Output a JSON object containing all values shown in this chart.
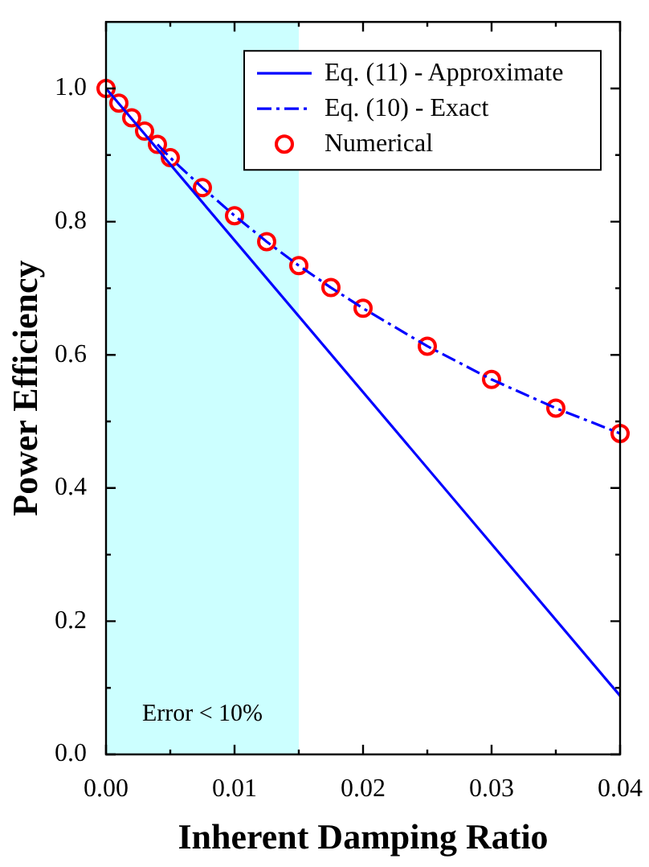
{
  "chart_data": {
    "type": "line",
    "xlabel": "Inherent Damping Ratio",
    "ylabel": "Power Efficiency",
    "xlim": [
      0,
      0.04
    ],
    "ylim": [
      0,
      1.1
    ],
    "xticks": [
      {
        "value": 0,
        "label": "0.00"
      },
      {
        "value": 0.005,
        "label": null
      },
      0.01,
      {
        "value": 0.015,
        "label": null
      },
      0.02,
      {
        "value": 0.025,
        "label": null
      },
      0.03,
      {
        "value": 0.035,
        "label": null
      },
      0.04
    ],
    "yticks": [
      {
        "value": 0,
        "label": "0.0"
      },
      {
        "value": 0.1,
        "label": null
      },
      0.2,
      {
        "value": 0.3,
        "label": null
      },
      0.4,
      {
        "value": 0.5,
        "label": null
      },
      0.6,
      {
        "value": 0.7,
        "label": null
      },
      0.8,
      {
        "value": 0.9,
        "label": null
      },
      {
        "value": 1,
        "label": "1.0"
      }
    ],
    "legend": "top right",
    "bands": [
      {
        "axis": "x",
        "from": 0,
        "to": 0.015,
        "label": "Error < 10%",
        "color": "#ccffff"
      }
    ],
    "series": [
      {
        "name": "Eq. (11) - Approximate",
        "color": "#0000ff",
        "line_style": "solid",
        "marker": "none",
        "x": [
          0,
          0.04
        ],
        "values": [
          1.0,
          0.088
        ]
      },
      {
        "name": "Eq. (10) - Exact",
        "color": "#0000ff",
        "line_style": "dashed",
        "marker": "none",
        "x": [
          0.004,
          0.005,
          0.0075,
          0.01,
          0.0125,
          0.015,
          0.0175,
          0.02,
          0.025,
          0.03,
          0.035,
          0.04
        ],
        "values": [
          0.916,
          0.896,
          0.851,
          0.809,
          0.77,
          0.734,
          0.701,
          0.67,
          0.613,
          0.563,
          0.52,
          0.482
        ]
      },
      {
        "name": "Numerical",
        "type": "scatter",
        "color": "#ff0000",
        "marker": "circle",
        "x": [
          0,
          0.001,
          0.002,
          0.003,
          0.004,
          0.005,
          0.0075,
          0.01,
          0.0125,
          0.015,
          0.0175,
          0.02,
          0.025,
          0.03,
          0.035,
          0.04
        ],
        "values": [
          1.0,
          0.978,
          0.956,
          0.936,
          0.916,
          0.896,
          0.851,
          0.809,
          0.77,
          0.734,
          0.701,
          0.67,
          0.613,
          0.563,
          0.52,
          0.482
        ]
      }
    ]
  }
}
